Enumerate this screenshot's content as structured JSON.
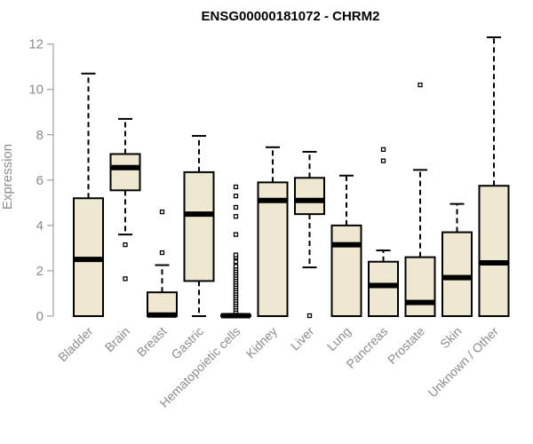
{
  "chart_data": {
    "type": "boxplot",
    "title": "ENSG00000181072 - CHRM2",
    "xlabel": "",
    "ylabel": "Expression",
    "ylim": [
      0,
      12.3
    ],
    "yticks": [
      0,
      2,
      4,
      6,
      8,
      10,
      12
    ],
    "grid": false,
    "legend": "none",
    "box_color": "#efe8d0",
    "categories": [
      "Bladder",
      "Brain",
      "Breast",
      "Gastric",
      "Hematopoietic cells",
      "Kidney",
      "Liver",
      "Lung",
      "Pancreas",
      "Prostate",
      "Skin",
      "Unknown / Other"
    ],
    "boxes": [
      {
        "whisker_low": 0,
        "q1": 0,
        "median": 2.5,
        "q3": 5.2,
        "whisker_high": 10.7,
        "outliers": []
      },
      {
        "whisker_low": 3.6,
        "q1": 5.55,
        "median": 6.55,
        "q3": 7.15,
        "whisker_high": 8.7,
        "outliers": [
          1.65,
          3.15
        ]
      },
      {
        "whisker_low": 0,
        "q1": 0,
        "median": 0.05,
        "q3": 1.05,
        "whisker_high": 2.25,
        "outliers": [
          2.8,
          4.6
        ]
      },
      {
        "whisker_low": 0,
        "q1": 1.55,
        "median": 4.5,
        "q3": 6.35,
        "whisker_high": 7.95,
        "outliers": []
      },
      {
        "whisker_low": 0,
        "q1": 0,
        "median": 0.02,
        "q3": 0.05,
        "whisker_high": 0.1,
        "outliers": [
          0.2,
          0.3,
          0.4,
          0.5,
          0.6,
          0.7,
          0.8,
          0.9,
          1.0,
          1.1,
          1.2,
          1.3,
          1.4,
          1.5,
          1.6,
          1.7,
          1.8,
          1.9,
          2.0,
          2.1,
          2.2,
          2.4,
          2.6,
          2.7,
          3.6,
          4.4,
          4.8,
          5.3,
          5.7
        ]
      },
      {
        "whisker_low": 0,
        "q1": 0,
        "median": 5.1,
        "q3": 5.9,
        "whisker_high": 7.45,
        "outliers": []
      },
      {
        "whisker_low": 2.15,
        "q1": 4.5,
        "median": 5.1,
        "q3": 6.1,
        "whisker_high": 7.25,
        "outliers": [
          0.02
        ]
      },
      {
        "whisker_low": 0,
        "q1": 0,
        "median": 3.15,
        "q3": 4.0,
        "whisker_high": 6.2,
        "outliers": []
      },
      {
        "whisker_low": 0,
        "q1": 0,
        "median": 1.35,
        "q3": 2.4,
        "whisker_high": 2.9,
        "outliers": [
          6.85,
          7.35
        ]
      },
      {
        "whisker_low": 0,
        "q1": 0,
        "median": 0.6,
        "q3": 2.6,
        "whisker_high": 6.45,
        "outliers": [
          10.2
        ]
      },
      {
        "whisker_low": 0,
        "q1": 0,
        "median": 1.7,
        "q3": 3.7,
        "whisker_high": 4.95,
        "outliers": []
      },
      {
        "whisker_low": 0,
        "q1": 0,
        "median": 2.35,
        "q3": 5.75,
        "whisker_high": 12.3,
        "outliers": []
      }
    ]
  }
}
